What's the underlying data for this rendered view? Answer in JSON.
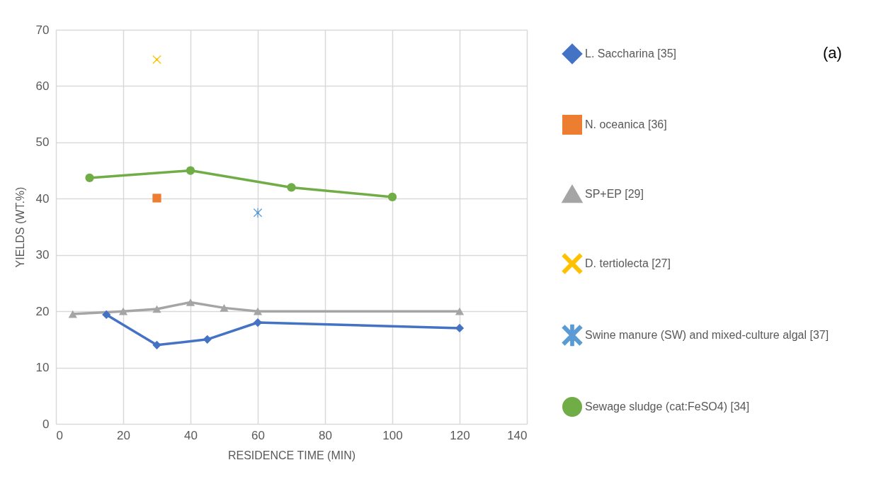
{
  "chart_data": {
    "type": "line",
    "xlabel": "RESIDENCE TIME (MIN)",
    "ylabel": "YIELDS (WT.%)",
    "xlim": [
      0,
      140
    ],
    "xticks": [
      0,
      20,
      40,
      60,
      80,
      100,
      120,
      140
    ],
    "ylim": [
      0,
      70
    ],
    "yticks": [
      0,
      10,
      20,
      30,
      40,
      50,
      60,
      70
    ],
    "grid": true,
    "legend": "right",
    "line_style": "solid",
    "annotations": [
      "(a)"
    ],
    "series": [
      {
        "name": "L. Saccharina [35]",
        "color": "#4472c4",
        "marker": "diamond",
        "x": [
          15,
          30,
          45,
          60,
          120
        ],
        "values": [
          19.4,
          14,
          15,
          18,
          17
        ]
      },
      {
        "name": "N. oceanica [36]",
        "color": "#ed7d31",
        "marker": "square",
        "x": [
          30
        ],
        "values": [
          40.1
        ]
      },
      {
        "name": "SP+EP [29]",
        "color": "#a5a5a5",
        "marker": "triangle",
        "x": [
          5,
          20,
          30,
          40,
          50,
          60,
          120
        ],
        "values": [
          19.5,
          20,
          20.4,
          21.6,
          20.6,
          20,
          20
        ]
      },
      {
        "name": "D. tertiolecta [27]",
        "color": "#ffc000",
        "marker": "cross",
        "x": [
          30
        ],
        "values": [
          64.7
        ]
      },
      {
        "name": "Swine manure (SW) and mixed-culture algal [37]",
        "color": "#5b9bd5",
        "marker": "star",
        "x": [
          60
        ],
        "values": [
          37.5
        ]
      },
      {
        "name": "Sewage sludge (cat:FeSO4) [34]",
        "color": "#70ad47",
        "marker": "circle",
        "x": [
          10,
          40,
          70,
          100
        ],
        "values": [
          43.7,
          45,
          42,
          40.3
        ]
      }
    ]
  }
}
